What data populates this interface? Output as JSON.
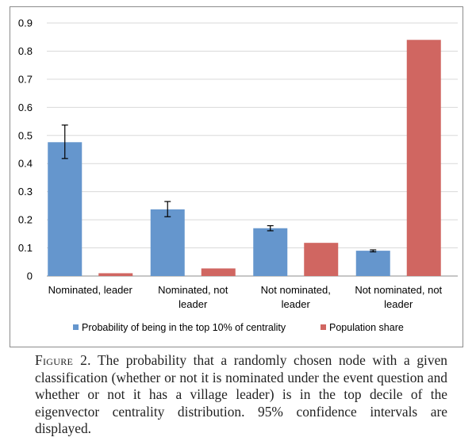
{
  "chart_data": {
    "type": "bar",
    "categories": [
      "Nominated, leader",
      "Nominated, not leader",
      "Not nominated, leader",
      "Not nominated, not leader"
    ],
    "category_lines": [
      [
        "Nominated, leader"
      ],
      [
        "Nominated, not",
        "leader"
      ],
      [
        "Not nominated,",
        "leader"
      ],
      [
        "Not nominated, not",
        "leader"
      ]
    ],
    "series": [
      {
        "name": "Probability of being in the top 10% of centrality",
        "color": "#6596cd",
        "values": [
          0.476,
          0.237,
          0.17,
          0.09
        ],
        "ci_low": [
          0.418,
          0.211,
          0.161,
          0.086
        ],
        "ci_high": [
          0.537,
          0.265,
          0.179,
          0.093
        ]
      },
      {
        "name": "Population share",
        "color": "#d06661",
        "values": [
          0.01,
          0.027,
          0.118,
          0.84
        ]
      }
    ],
    "ylim": [
      0,
      0.9
    ],
    "yticks": [
      "0",
      "0.1",
      "0.2",
      "0.3",
      "0.4",
      "0.5",
      "0.6",
      "0.7",
      "0.8",
      "0.9"
    ],
    "xlabel": "",
    "ylabel": "",
    "grid": true,
    "legend_position": "bottom"
  },
  "caption": {
    "lead": "Figure 2.",
    "text": " The probability that a randomly chosen node with a given classification (whether or not it is nominated under the event question and whether or not it has a village leader) is in the top decile of the eigenvector centrality distribution. 95% confidence intervals are displayed."
  }
}
